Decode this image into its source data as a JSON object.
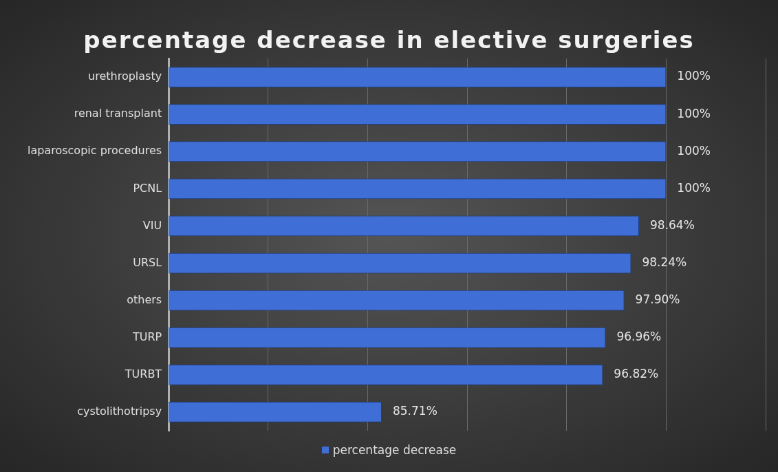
{
  "chart_data": {
    "type": "bar",
    "orientation": "horizontal",
    "title": "percentage decrease in elective surgeries",
    "categories": [
      "urethroplasty",
      "renal transplant",
      "laparoscopic procedures",
      "PCNL",
      "VIU",
      "URSL",
      "others",
      "TURP",
      "TURBT",
      "cystolithotripsy"
    ],
    "series": [
      {
        "name": "percentage decrease",
        "color": "#3f6fd6",
        "values": [
          100,
          100,
          100,
          100,
          98.64,
          98.24,
          97.9,
          96.96,
          96.82,
          85.71
        ],
        "value_labels": [
          "100%",
          "100%",
          "100%",
          "100%",
          "98.64%",
          "98.24%",
          "97.90%",
          "96.96%",
          "96.82%",
          "85.71%"
        ]
      }
    ],
    "xlim": [
      75,
      105
    ],
    "xticks": [
      {
        "value": 75,
        "label": null
      },
      {
        "value": 80,
        "label": null
      },
      {
        "value": 85,
        "label": null
      },
      {
        "value": 90,
        "label": null
      },
      {
        "value": 95,
        "label": null
      },
      {
        "value": 100,
        "label": null
      },
      {
        "value": 105,
        "label": null
      }
    ],
    "tick_labels": "y",
    "grid": "x",
    "legend": "bottom"
  }
}
